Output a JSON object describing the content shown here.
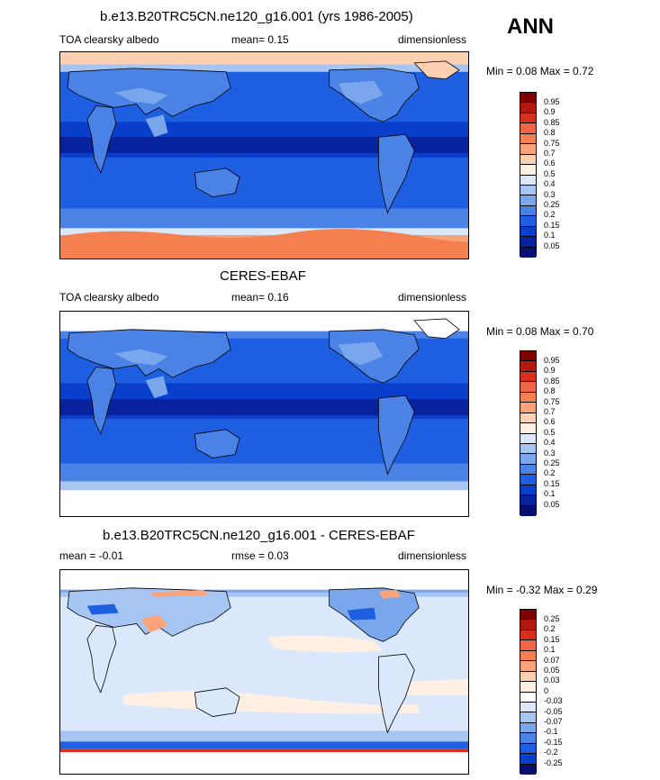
{
  "season": "ANN",
  "panels": [
    {
      "title": "b.e13.B20TRC5CN.ne120_g16.001 (yrs 1986-2005)",
      "left_text": "TOA clearsky albedo",
      "mid_text": "mean=   0.15",
      "right_text": "dimensionless",
      "minmax": "Min =   0.08 Max =   0.72",
      "levels": [
        "0.95",
        "0.9",
        "0.85",
        "0.8",
        "0.75",
        "0.7",
        "0.6",
        "0.5",
        "0.4",
        "0.3",
        "0.25",
        "0.2",
        "0.15",
        "0.1",
        "0.05"
      ]
    },
    {
      "title": "CERES-EBAF",
      "left_text": "TOA clearsky albedo",
      "mid_text": "mean=   0.16",
      "right_text": "dimensionless",
      "minmax": "Min =   0.08 Max =   0.70",
      "levels": [
        "0.95",
        "0.9",
        "0.85",
        "0.8",
        "0.75",
        "0.7",
        "0.6",
        "0.5",
        "0.4",
        "0.3",
        "0.25",
        "0.2",
        "0.15",
        "0.1",
        "0.05"
      ]
    },
    {
      "title": "b.e13.B20TRC5CN.ne120_g16.001 - CERES-EBAF",
      "left_text": "mean =  -0.01",
      "mid_text": "rmse =   0.03",
      "right_text": "dimensionless",
      "minmax": "Min =  -0.32 Max =   0.29",
      "levels": [
        "0.25",
        "0.2",
        "0.15",
        "0.1",
        "0.07",
        "0.05",
        "0.03",
        "0",
        "-0.03",
        "-0.05",
        "-0.07",
        "-0.1",
        "-0.15",
        "-0.2",
        "-0.25"
      ]
    }
  ],
  "colors": {
    "abs_scale": [
      "#7f0000",
      "#b2180e",
      "#d7301f",
      "#ef6548",
      "#f4804f",
      "#f9a37a",
      "#fcd0b0",
      "#fff0e3",
      "#dbe8fb",
      "#a7c5f2",
      "#7aa6ec",
      "#4a82e6",
      "#1d5fe0",
      "#0a3fcc",
      "#07229c",
      "#051070"
    ],
    "diff_scale": [
      "#7f0000",
      "#b2180e",
      "#d7301f",
      "#ef6548",
      "#f4804f",
      "#f9a37a",
      "#fcd0b0",
      "#fff0e3",
      "#ffffff",
      "#dbe8fb",
      "#a7c5f2",
      "#7aa6ec",
      "#4a82e6",
      "#1d5fe0",
      "#0a3fcc",
      "#051070"
    ]
  }
}
